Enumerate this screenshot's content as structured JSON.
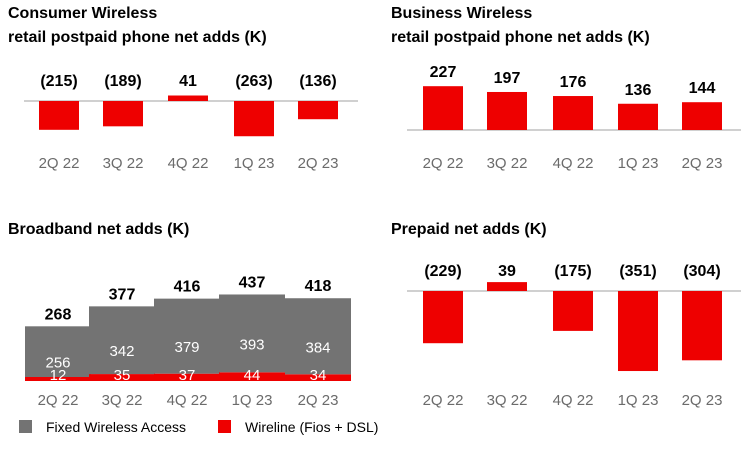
{
  "colors": {
    "red": "#ee0000",
    "gray": "#737373",
    "axis": "#b5b5b5",
    "tick": "#6b6b6b",
    "text": "#000000"
  },
  "chart_data": [
    {
      "id": "consumer",
      "type": "bar",
      "title": [
        "Consumer Wireless",
        "retail postpaid phone net adds (K)"
      ],
      "categories": [
        "2Q 22",
        "3Q 22",
        "4Q 22",
        "1Q 23",
        "2Q 23"
      ],
      "values": [
        -215,
        -189,
        41,
        -263,
        -136
      ],
      "labels": [
        "(215)",
        "(189)",
        "41",
        "(263)",
        "(136)"
      ]
    },
    {
      "id": "business",
      "type": "bar",
      "title": [
        "Business Wireless",
        "retail postpaid phone net adds (K)"
      ],
      "categories": [
        "2Q 22",
        "3Q 22",
        "4Q 22",
        "1Q 23",
        "2Q 23"
      ],
      "values": [
        227,
        197,
        176,
        136,
        144
      ],
      "labels": [
        "227",
        "197",
        "176",
        "136",
        "144"
      ]
    },
    {
      "id": "broadband",
      "type": "bar",
      "stacked": true,
      "title": [
        "Broadband net adds (K)"
      ],
      "categories": [
        "2Q 22",
        "3Q 22",
        "4Q 22",
        "1Q 23",
        "2Q 23"
      ],
      "series": [
        {
          "name": "Wireline (Fios + DSL)",
          "values": [
            12,
            35,
            37,
            44,
            34
          ]
        },
        {
          "name": "Fixed Wireless Access",
          "values": [
            256,
            342,
            379,
            393,
            384
          ]
        }
      ],
      "totals": [
        268,
        377,
        416,
        437,
        418
      ],
      "legend": [
        "Fixed Wireless Access",
        "Wireline (Fios + DSL)"
      ]
    },
    {
      "id": "prepaid",
      "type": "bar",
      "title": [
        "Prepaid net adds (K)"
      ],
      "categories": [
        "2Q 22",
        "3Q 22",
        "4Q 22",
        "1Q 23",
        "2Q 23"
      ],
      "values": [
        -229,
        39,
        -175,
        -351,
        -304
      ],
      "labels": [
        "(229)",
        "39",
        "(175)",
        "(351)",
        "(304)"
      ]
    }
  ]
}
